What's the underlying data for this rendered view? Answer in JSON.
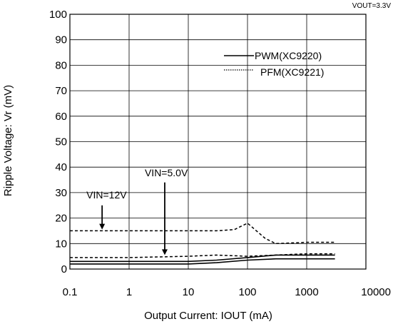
{
  "chart_data": {
    "type": "line",
    "condition_label": "VOUT=3.3V",
    "xlabel": "Output Current: IOUT (mA)",
    "ylabel": "Ripple Voltage: Vr (mV)",
    "x_scale": "log",
    "xlim": [
      0.1,
      10000
    ],
    "ylim": [
      0,
      100
    ],
    "x_ticks": [
      "0.1",
      "1",
      "10",
      "100",
      "1000",
      "10000"
    ],
    "y_ticks": [
      "0",
      "10",
      "20",
      "30",
      "40",
      "50",
      "60",
      "70",
      "80",
      "90",
      "100"
    ],
    "grid": true,
    "legend_position": "top-right",
    "legend": [
      {
        "label": "PWM(XC9220)",
        "style": "solid"
      },
      {
        "label": "PFM(XC9221)",
        "style": "dotted"
      }
    ],
    "series": [
      {
        "group": "PWM",
        "dash": "solid",
        "points": [
          [
            0.1,
            3.0
          ],
          [
            1,
            3.0
          ],
          [
            10,
            3.0
          ],
          [
            30,
            3.5
          ],
          [
            100,
            4.5
          ],
          [
            300,
            5.5
          ],
          [
            1000,
            5.5
          ],
          [
            3000,
            5.5
          ]
        ]
      },
      {
        "group": "PWM",
        "dash": "solid",
        "points": [
          [
            0.1,
            2.0
          ],
          [
            1,
            2.0
          ],
          [
            10,
            2.0
          ],
          [
            30,
            2.5
          ],
          [
            100,
            3.5
          ],
          [
            300,
            4.0
          ],
          [
            1000,
            4.0
          ],
          [
            3000,
            4.0
          ]
        ]
      },
      {
        "group": "PFM",
        "dash": "dashed",
        "points": [
          [
            0.1,
            15.0
          ],
          [
            1,
            15.0
          ],
          [
            10,
            15.0
          ],
          [
            30,
            15.0
          ],
          [
            60,
            15.5
          ],
          [
            100,
            18.0
          ],
          [
            200,
            12.0
          ],
          [
            300,
            10.0
          ],
          [
            1000,
            10.5
          ],
          [
            3000,
            10.5
          ]
        ]
      },
      {
        "group": "PFM",
        "dash": "dashed",
        "points": [
          [
            0.1,
            4.5
          ],
          [
            1,
            4.5
          ],
          [
            10,
            5.0
          ],
          [
            30,
            5.5
          ],
          [
            100,
            5.0
          ],
          [
            300,
            5.5
          ],
          [
            1000,
            6.0
          ],
          [
            3000,
            6.0
          ]
        ]
      }
    ],
    "annotations": [
      {
        "text": "VIN=12V",
        "arrow_x": 0.35,
        "arrow_from_y": 25,
        "arrow_to_y": 15.5
      },
      {
        "text": "VIN=5.0V",
        "arrow_x": 4,
        "arrow_from_y": 34,
        "arrow_to_y": 5.5
      }
    ]
  },
  "colors": {
    "background": "#ffffff",
    "axis": "#000000",
    "grid": "#000000",
    "series": "#000000"
  }
}
